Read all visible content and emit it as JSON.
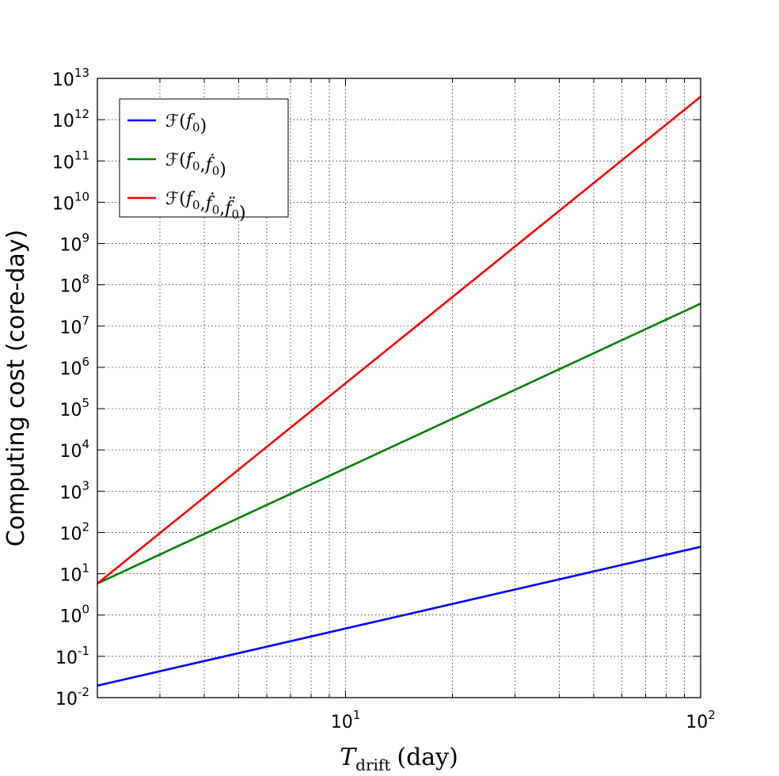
{
  "chart_data": {
    "type": "line",
    "xscale": "log",
    "yscale": "log",
    "xlim": [
      2,
      100
    ],
    "ylim": [
      0.01,
      10000000000000.0
    ],
    "grid": true,
    "legend_position": "top-left",
    "xlabel": {
      "main": "T",
      "sub": "drift",
      "unit": "(day)"
    },
    "ylabel": "Computing cost (core-day)",
    "xticks": [
      {
        "value": 10,
        "base": "10",
        "exp": "1"
      },
      {
        "value": 100,
        "base": "10",
        "exp": "2"
      }
    ],
    "yticks": [
      {
        "value": 0.01,
        "base": "10",
        "exp": "-2"
      },
      {
        "value": 0.1,
        "base": "10",
        "exp": "-1"
      },
      {
        "value": 1,
        "base": "10",
        "exp": "0"
      },
      {
        "value": 10,
        "base": "10",
        "exp": "1"
      },
      {
        "value": 100,
        "base": "10",
        "exp": "2"
      },
      {
        "value": 1000,
        "base": "10",
        "exp": "3"
      },
      {
        "value": 10000,
        "base": "10",
        "exp": "4"
      },
      {
        "value": 100000,
        "base": "10",
        "exp": "5"
      },
      {
        "value": 1000000,
        "base": "10",
        "exp": "6"
      },
      {
        "value": 10000000,
        "base": "10",
        "exp": "7"
      },
      {
        "value": 100000000,
        "base": "10",
        "exp": "8"
      },
      {
        "value": 1000000000,
        "base": "10",
        "exp": "9"
      },
      {
        "value": 10000000000,
        "base": "10",
        "exp": "10"
      },
      {
        "value": 100000000000,
        "base": "10",
        "exp": "11"
      },
      {
        "value": 1000000000000,
        "base": "10",
        "exp": "12"
      },
      {
        "value": 10000000000000,
        "base": "10",
        "exp": "13"
      }
    ],
    "series": [
      {
        "name": "F(f0)",
        "color": "#0000ff",
        "x": [
          2,
          100
        ],
        "y": [
          0.0195,
          45
        ]
      },
      {
        "name": "F(f0,ḟ0)",
        "color": "#008000",
        "x": [
          2,
          100
        ],
        "y": [
          5.8,
          35000000.0
        ]
      },
      {
        "name": "F(f0,ḟ0,f̈0)",
        "color": "#ff0000",
        "x": [
          2,
          100
        ],
        "y": [
          5.8,
          3600000000000.0
        ]
      }
    ]
  }
}
